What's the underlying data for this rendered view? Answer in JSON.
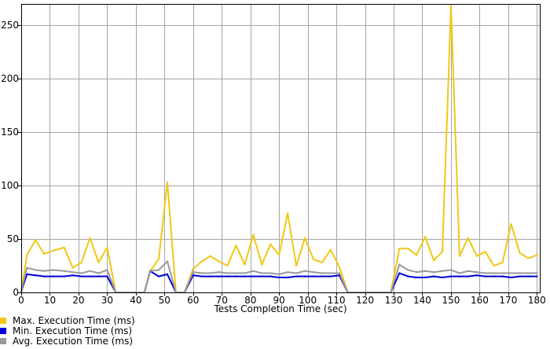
{
  "chart_data": {
    "type": "line",
    "xlabel": "Tests Completion Time (sec)",
    "ylabel": "",
    "xlim": [
      0,
      181
    ],
    "ylim": [
      0,
      270
    ],
    "x_ticks": [
      0,
      10,
      20,
      30,
      40,
      50,
      60,
      70,
      80,
      90,
      100,
      110,
      120,
      130,
      140,
      150,
      160,
      170,
      180
    ],
    "y_ticks": [
      0,
      50,
      100,
      150,
      200,
      250
    ],
    "grid": true,
    "legend_position": "bottom-left",
    "series": [
      {
        "name": "Max. Execution Time (ms)",
        "color": "#f2c715",
        "points": [
          [
            0,
            1
          ],
          [
            2,
            35
          ],
          [
            5,
            49
          ],
          [
            8,
            36
          ],
          [
            11,
            39
          ],
          [
            15,
            42
          ],
          [
            18,
            23
          ],
          [
            21,
            28
          ],
          [
            24,
            51
          ],
          [
            27,
            28
          ],
          [
            30,
            42
          ],
          [
            33,
            0
          ],
          [
            36,
            0
          ],
          [
            40,
            0
          ],
          [
            43,
            0
          ],
          [
            45,
            20
          ],
          [
            48,
            31
          ],
          [
            51,
            103
          ],
          [
            54,
            0
          ],
          [
            57,
            0
          ],
          [
            60,
            22
          ],
          [
            63,
            29
          ],
          [
            66,
            34
          ],
          [
            69,
            29
          ],
          [
            72,
            25
          ],
          [
            75,
            44
          ],
          [
            78,
            26
          ],
          [
            81,
            54
          ],
          [
            84,
            26
          ],
          [
            87,
            45
          ],
          [
            90,
            35
          ],
          [
            93,
            74
          ],
          [
            96,
            25
          ],
          [
            99,
            51
          ],
          [
            102,
            31
          ],
          [
            105,
            28
          ],
          [
            108,
            40
          ],
          [
            111,
            24
          ],
          [
            114,
            0
          ],
          [
            118,
            0
          ],
          [
            122,
            0
          ],
          [
            126,
            0
          ],
          [
            129,
            0
          ],
          [
            132,
            41
          ],
          [
            135,
            41
          ],
          [
            138,
            35
          ],
          [
            141,
            52
          ],
          [
            144,
            30
          ],
          [
            147,
            38
          ],
          [
            150,
            268
          ],
          [
            153,
            34
          ],
          [
            156,
            51
          ],
          [
            159,
            34
          ],
          [
            162,
            38
          ],
          [
            165,
            25
          ],
          [
            168,
            28
          ],
          [
            171,
            64
          ],
          [
            174,
            37
          ],
          [
            177,
            32
          ],
          [
            180,
            35
          ]
        ]
      },
      {
        "name": "Min. Execution Time (ms)",
        "color": "#0000dd",
        "points": [
          [
            0,
            1
          ],
          [
            2,
            17
          ],
          [
            5,
            16
          ],
          [
            8,
            15
          ],
          [
            11,
            15
          ],
          [
            15,
            15
          ],
          [
            18,
            16
          ],
          [
            21,
            15
          ],
          [
            24,
            15
          ],
          [
            27,
            15
          ],
          [
            30,
            15
          ],
          [
            33,
            0
          ],
          [
            36,
            0
          ],
          [
            40,
            0
          ],
          [
            43,
            0
          ],
          [
            45,
            20
          ],
          [
            48,
            15
          ],
          [
            51,
            17
          ],
          [
            54,
            0
          ],
          [
            57,
            0
          ],
          [
            60,
            16
          ],
          [
            63,
            15
          ],
          [
            66,
            15
          ],
          [
            69,
            15
          ],
          [
            72,
            15
          ],
          [
            75,
            15
          ],
          [
            78,
            15
          ],
          [
            81,
            15
          ],
          [
            84,
            15
          ],
          [
            87,
            15
          ],
          [
            90,
            14
          ],
          [
            93,
            14
          ],
          [
            96,
            15
          ],
          [
            99,
            15
          ],
          [
            102,
            15
          ],
          [
            105,
            15
          ],
          [
            108,
            15
          ],
          [
            111,
            16
          ],
          [
            114,
            0
          ],
          [
            118,
            0
          ],
          [
            122,
            0
          ],
          [
            126,
            0
          ],
          [
            129,
            0
          ],
          [
            132,
            18
          ],
          [
            135,
            15
          ],
          [
            138,
            14
          ],
          [
            141,
            14
          ],
          [
            144,
            15
          ],
          [
            147,
            14
          ],
          [
            150,
            15
          ],
          [
            153,
            15
          ],
          [
            156,
            15
          ],
          [
            159,
            16
          ],
          [
            162,
            15
          ],
          [
            165,
            15
          ],
          [
            168,
            15
          ],
          [
            171,
            14
          ],
          [
            174,
            15
          ],
          [
            177,
            15
          ],
          [
            180,
            15
          ]
        ]
      },
      {
        "name": "Avg. Execution Time (ms)",
        "color": "#999999",
        "points": [
          [
            0,
            1
          ],
          [
            2,
            23
          ],
          [
            5,
            21
          ],
          [
            8,
            20
          ],
          [
            11,
            21
          ],
          [
            15,
            20
          ],
          [
            18,
            19
          ],
          [
            21,
            18
          ],
          [
            24,
            20
          ],
          [
            27,
            18
          ],
          [
            30,
            21
          ],
          [
            33,
            0
          ],
          [
            36,
            0
          ],
          [
            40,
            0
          ],
          [
            43,
            0
          ],
          [
            45,
            20
          ],
          [
            48,
            21
          ],
          [
            51,
            29
          ],
          [
            54,
            0
          ],
          [
            57,
            0
          ],
          [
            60,
            19
          ],
          [
            63,
            18
          ],
          [
            66,
            18
          ],
          [
            69,
            19
          ],
          [
            72,
            18
          ],
          [
            75,
            18
          ],
          [
            78,
            18
          ],
          [
            81,
            20
          ],
          [
            84,
            18
          ],
          [
            87,
            18
          ],
          [
            90,
            17
          ],
          [
            93,
            19
          ],
          [
            96,
            18
          ],
          [
            99,
            20
          ],
          [
            102,
            19
          ],
          [
            105,
            18
          ],
          [
            108,
            18
          ],
          [
            111,
            18
          ],
          [
            114,
            0
          ],
          [
            118,
            0
          ],
          [
            122,
            0
          ],
          [
            126,
            0
          ],
          [
            129,
            0
          ],
          [
            132,
            26
          ],
          [
            135,
            21
          ],
          [
            138,
            19
          ],
          [
            141,
            20
          ],
          [
            144,
            19
          ],
          [
            147,
            20
          ],
          [
            150,
            21
          ],
          [
            153,
            18
          ],
          [
            156,
            20
          ],
          [
            159,
            19
          ],
          [
            162,
            18
          ],
          [
            165,
            18
          ],
          [
            168,
            18
          ],
          [
            171,
            18
          ],
          [
            174,
            18
          ],
          [
            177,
            18
          ],
          [
            180,
            18
          ]
        ]
      }
    ]
  }
}
